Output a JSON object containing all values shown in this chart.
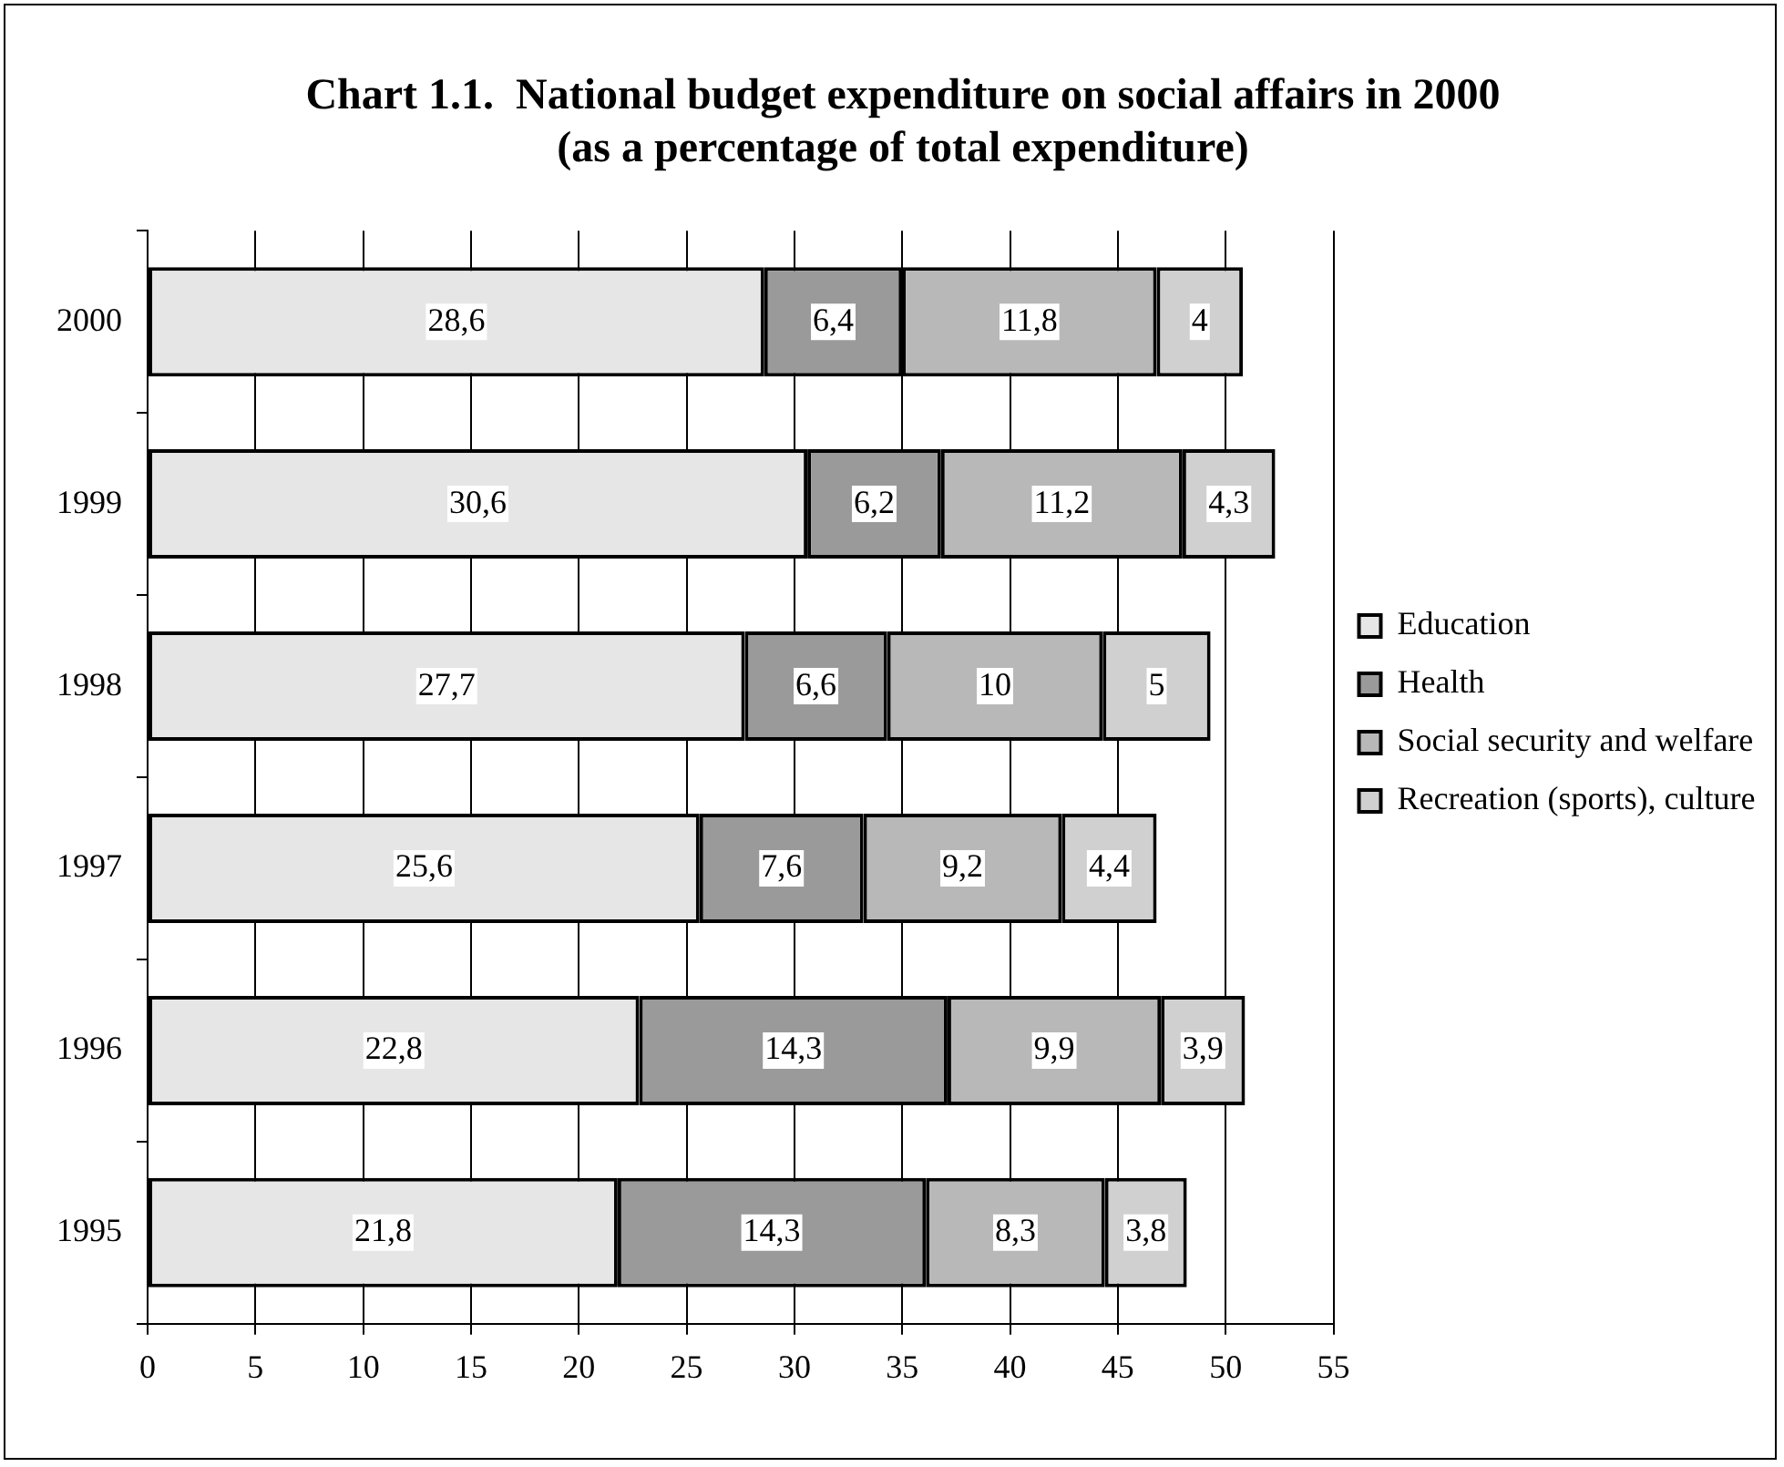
{
  "chart_data": {
    "type": "bar",
    "orientation": "horizontal",
    "stacked": true,
    "title": [
      "Chart 1.1.  National budget expenditure on social affairs in 2000",
      "(as a percentage of total expenditure)"
    ],
    "categories": [
      "2000",
      "1999",
      "1998",
      "1997",
      "1996",
      "1995"
    ],
    "series": [
      {
        "name": "Education",
        "color": "#e6e6e6",
        "values": [
          28.6,
          30.6,
          27.7,
          25.6,
          22.8,
          21.8
        ],
        "value_labels": [
          "28,6",
          "30,6",
          "27,7",
          "25,6",
          "22,8",
          "21,8"
        ]
      },
      {
        "name": "Health",
        "color": "#9a9a9a",
        "values": [
          6.4,
          6.2,
          6.6,
          7.6,
          14.3,
          14.3
        ],
        "value_labels": [
          "6,4",
          "6,2",
          "6,6",
          "7,6",
          "14,3",
          "14,3"
        ]
      },
      {
        "name": "Social security and welfare",
        "color": "#b8b8b8",
        "values": [
          11.8,
          11.2,
          10,
          9.2,
          9.9,
          8.3
        ],
        "value_labels": [
          "11,8",
          "11,2",
          "10",
          "9,2",
          "9,9",
          "8,3"
        ]
      },
      {
        "name": "Recreation (sports), culture",
        "color": "#d0d0d0",
        "values": [
          4,
          4.3,
          5,
          4.4,
          3.9,
          3.8
        ],
        "value_labels": [
          "4",
          "4,3",
          "5",
          "4,4",
          "3,9",
          "3,8"
        ]
      }
    ],
    "xlim": [
      0,
      55
    ],
    "xticks": [
      0,
      5,
      10,
      15,
      20,
      25,
      30,
      35,
      40,
      45,
      50,
      55
    ],
    "grid": "x",
    "legend": "right"
  }
}
